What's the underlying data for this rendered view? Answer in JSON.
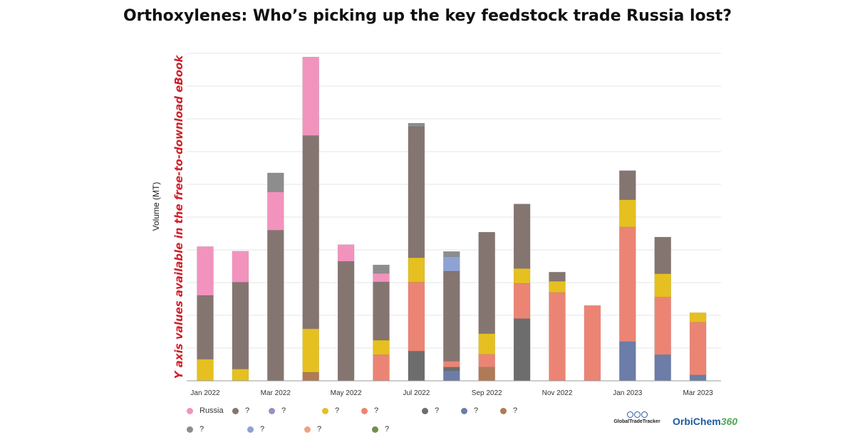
{
  "title": "Orthoxylenes: Who’s picking up the key feedstock trade Russia lost?",
  "y_axis_note": "Y axis values available in the free-to-download eBook",
  "colors": {
    "russia": "#f293bd",
    "dark_brown": "#857570",
    "purple": "#9c8ec6",
    "yellow": "#e6c020",
    "salmon": "#ec8474",
    "slate": "#6d6d6d",
    "navy": "#6b7da8",
    "bronze": "#b07a58",
    "gray": "#8d8d8d",
    "light_blue": "#8fa2d4",
    "peach": "#efa283",
    "olive": "#6f8f4f"
  },
  "chart_data": {
    "type": "bar",
    "stacked": true,
    "ylabel": "Volume (MT)",
    "y_tick_labels_shown": false,
    "ylim": [
      0,
      10
    ],
    "grid": true,
    "legend_position": "bottom",
    "categories": [
      "Jan 2022",
      "Feb 2022",
      "Mar 2022",
      "Apr 2022",
      "May 2022",
      "Jun 2022",
      "Jul 2022",
      "Aug 2022",
      "Sep 2022",
      "Oct 2022",
      "Nov 2022",
      "Dec 2022",
      "Jan 2023",
      "Feb 2023",
      "Mar 2023"
    ],
    "x_tick_labels": [
      "Jan 2022",
      "",
      "Mar 2022",
      "",
      "May 2022",
      "",
      "Jul 2022",
      "",
      "Sep 2022",
      "",
      "Nov 2022",
      "",
      "Jan 2023",
      "",
      "Mar 2023"
    ],
    "series": [
      {
        "name": "",
        "color_key": "bronze",
        "values": [
          0,
          0,
          0,
          0.26,
          0,
          0,
          0,
          0,
          0.42,
          0,
          0,
          0,
          0,
          0,
          0
        ]
      },
      {
        "name": "",
        "color_key": "navy",
        "values": [
          0,
          0,
          0,
          0,
          0,
          0,
          0,
          0.3,
          0,
          0,
          0,
          0,
          1.2,
          0.8,
          0.18
        ]
      },
      {
        "name": "",
        "color_key": "slate",
        "values": [
          0,
          0,
          0,
          0,
          0,
          0,
          0.91,
          0.12,
          0,
          1.9,
          0,
          0,
          0,
          0,
          0
        ]
      },
      {
        "name": "",
        "color_key": "salmon",
        "values": [
          0,
          0,
          0,
          0,
          0,
          0.8,
          2.1,
          0.18,
          0.39,
          1.08,
          2.7,
          2.3,
          3.5,
          1.76,
          1.61
        ]
      },
      {
        "name": "",
        "color_key": "yellow",
        "values": [
          0.66,
          0.36,
          0,
          1.33,
          0,
          0.44,
          0.75,
          0,
          0.63,
          0.45,
          0.34,
          0,
          0.83,
          0.71,
          0.29
        ]
      },
      {
        "name": "",
        "color_key": "dark_brown",
        "values": [
          1.95,
          2.65,
          4.6,
          5.9,
          3.65,
          1.78,
          4.0,
          2.75,
          3.1,
          1.97,
          0.28,
          0,
          0.89,
          1.12,
          0
        ]
      },
      {
        "name": "",
        "color_key": "light_blue",
        "values": [
          0,
          0,
          0,
          0,
          0,
          0,
          0,
          0.44,
          0,
          0,
          0,
          0,
          0,
          0,
          0
        ]
      },
      {
        "name": "Russia",
        "color_key": "russia",
        "values": [
          1.49,
          0.95,
          1.17,
          2.4,
          0.51,
          0.26,
          0,
          0,
          0,
          0,
          0,
          0,
          0,
          0,
          0
        ]
      },
      {
        "name": "",
        "color_key": "gray",
        "values": [
          0,
          0,
          0.58,
          0,
          0,
          0.26,
          0.11,
          0.16,
          0,
          0,
          0,
          0,
          0,
          0,
          0
        ]
      }
    ]
  },
  "legend": [
    [
      {
        "label": "Russia",
        "color": "#f293bd"
      },
      {
        "label": "?",
        "color": "#857570"
      },
      {
        "label": "?",
        "color": "#9c8ec6"
      },
      {
        "label": "?",
        "color": "#e6c020"
      },
      {
        "label": "?",
        "color": "#ec8474"
      },
      {
        "label": "?",
        "color": "#6d6d6d"
      },
      {
        "label": "?",
        "color": "#6b7da8"
      },
      {
        "label": "?",
        "color": "#b07a58"
      }
    ],
    [
      {
        "label": "?",
        "color": "#8d8d8d"
      },
      {
        "label": "?",
        "color": "#8fa2d4"
      },
      {
        "label": "?",
        "color": "#efa283"
      },
      {
        "label": "?",
        "color": "#6f8f4f"
      }
    ]
  ],
  "logos": {
    "gtt": "GlobalTradeTracker",
    "orbichem_text": "OrbiChem",
    "orbichem_num": "360"
  }
}
